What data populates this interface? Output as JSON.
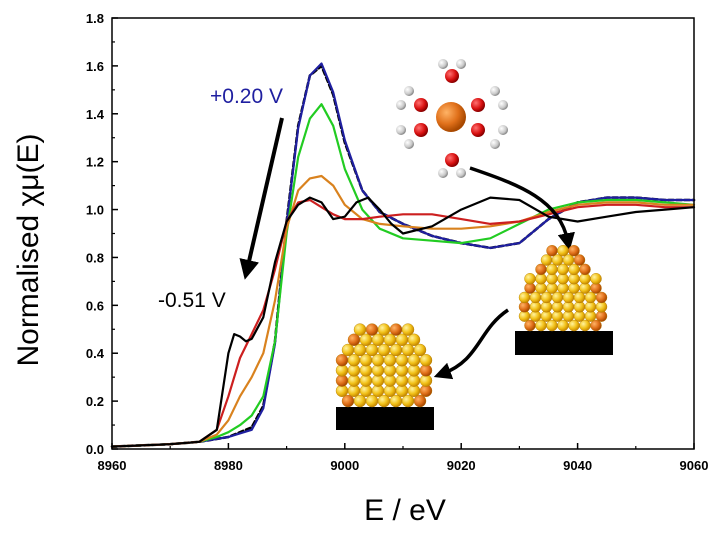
{
  "chart_data": {
    "type": "line",
    "title": "",
    "xlabel": "E / eV",
    "ylabel": "Normalised χμ(E)",
    "xlim": [
      8960,
      9060
    ],
    "ylim": [
      0.0,
      1.8
    ],
    "x_ticks": [
      "8960",
      "8980",
      "9000",
      "9020",
      "9040",
      "9060"
    ],
    "y_ticks": [
      "0.0",
      "0.2",
      "0.4",
      "0.6",
      "0.8",
      "1.0",
      "1.2",
      "1.4",
      "1.6",
      "1.8"
    ],
    "grid": false,
    "annotations": [
      {
        "text": "+0.20 V",
        "color": "#1f1fa0"
      },
      {
        "text": "-0.51 V",
        "color": "#000000"
      }
    ],
    "series": [
      {
        "color": "#000000",
        "dashed": true,
        "x": [
          8960,
          8970,
          8975,
          8980,
          8984,
          8986,
          8988,
          8990,
          8992,
          8994,
          8996,
          8998,
          9000,
          9003,
          9006,
          9010,
          9015,
          9020,
          9025,
          9030,
          9035,
          9040,
          9045,
          9050,
          9055,
          9060
        ],
        "y": [
          0.01,
          0.02,
          0.03,
          0.05,
          0.09,
          0.18,
          0.45,
          0.95,
          1.35,
          1.56,
          1.6,
          1.48,
          1.28,
          1.08,
          0.99,
          0.94,
          0.89,
          0.86,
          0.84,
          0.86,
          0.96,
          1.03,
          1.05,
          1.05,
          1.04,
          1.04
        ]
      },
      {
        "color": "#1f1fa0",
        "x": [
          8960,
          8970,
          8975,
          8980,
          8984,
          8986,
          8988,
          8990,
          8992,
          8994,
          8996,
          8998,
          9000,
          9003,
          9006,
          9010,
          9015,
          9020,
          9025,
          9030,
          9035,
          9040,
          9045,
          9050,
          9055,
          9060
        ],
        "y": [
          0.01,
          0.02,
          0.03,
          0.05,
          0.08,
          0.17,
          0.44,
          0.94,
          1.34,
          1.56,
          1.61,
          1.49,
          1.29,
          1.08,
          0.99,
          0.94,
          0.89,
          0.86,
          0.84,
          0.86,
          0.96,
          1.03,
          1.05,
          1.05,
          1.04,
          1.04
        ]
      },
      {
        "color": "#22cc22",
        "x": [
          8960,
          8970,
          8975,
          8978,
          8980,
          8982,
          8984,
          8986,
          8988,
          8990,
          8992,
          8994,
          8996,
          8998,
          9000,
          9003,
          9006,
          9010,
          9015,
          9020,
          9025,
          9030,
          9035,
          9040,
          9045,
          9050,
          9055,
          9060
        ],
        "y": [
          0.01,
          0.02,
          0.03,
          0.05,
          0.07,
          0.1,
          0.14,
          0.22,
          0.45,
          0.9,
          1.22,
          1.38,
          1.44,
          1.35,
          1.17,
          1.0,
          0.92,
          0.88,
          0.87,
          0.86,
          0.88,
          0.94,
          1.0,
          1.03,
          1.04,
          1.04,
          1.03,
          1.02
        ]
      },
      {
        "color": "#d9821e",
        "x": [
          8960,
          8970,
          8975,
          8978,
          8980,
          8982,
          8984,
          8986,
          8988,
          8990,
          8992,
          8994,
          8996,
          8998,
          9000,
          9003,
          9006,
          9010,
          9015,
          9020,
          9025,
          9030,
          9035,
          9040,
          9045,
          9050,
          9055,
          9060
        ],
        "y": [
          0.01,
          0.02,
          0.03,
          0.06,
          0.12,
          0.22,
          0.3,
          0.4,
          0.62,
          0.92,
          1.08,
          1.13,
          1.14,
          1.1,
          1.02,
          0.96,
          0.94,
          0.93,
          0.92,
          0.92,
          0.93,
          0.95,
          0.99,
          1.02,
          1.03,
          1.03,
          1.02,
          1.02
        ]
      },
      {
        "color": "#cc1f1f",
        "x": [
          8960,
          8970,
          8975,
          8978,
          8980,
          8982,
          8984,
          8986,
          8988,
          8990,
          8992,
          8994,
          8996,
          8998,
          9000,
          9003,
          9006,
          9010,
          9015,
          9020,
          9025,
          9030,
          9035,
          9040,
          9045,
          9050,
          9055,
          9060
        ],
        "y": [
          0.01,
          0.02,
          0.03,
          0.08,
          0.22,
          0.38,
          0.48,
          0.58,
          0.75,
          0.95,
          1.03,
          1.04,
          1.01,
          0.98,
          0.96,
          0.96,
          0.97,
          0.98,
          0.98,
          0.96,
          0.94,
          0.95,
          0.98,
          1.01,
          1.02,
          1.02,
          1.01,
          1.01
        ]
      },
      {
        "color": "#000000",
        "x": [
          8960,
          8970,
          8975,
          8978,
          8980,
          8981,
          8982,
          8983,
          8984,
          8986,
          8988,
          8990,
          8992,
          8994,
          8996,
          8998,
          9000,
          9002,
          9004,
          9006,
          9008,
          9010,
          9015,
          9020,
          9025,
          9030,
          9035,
          9040,
          9045,
          9050,
          9055,
          9060
        ],
        "y": [
          0.01,
          0.02,
          0.03,
          0.08,
          0.4,
          0.48,
          0.47,
          0.45,
          0.46,
          0.55,
          0.78,
          0.95,
          1.02,
          1.05,
          1.03,
          0.96,
          0.97,
          1.03,
          1.05,
          1.0,
          0.94,
          0.9,
          0.93,
          1.0,
          1.05,
          1.04,
          0.97,
          0.95,
          0.97,
          0.99,
          1.0,
          1.01
        ]
      }
    ]
  }
}
